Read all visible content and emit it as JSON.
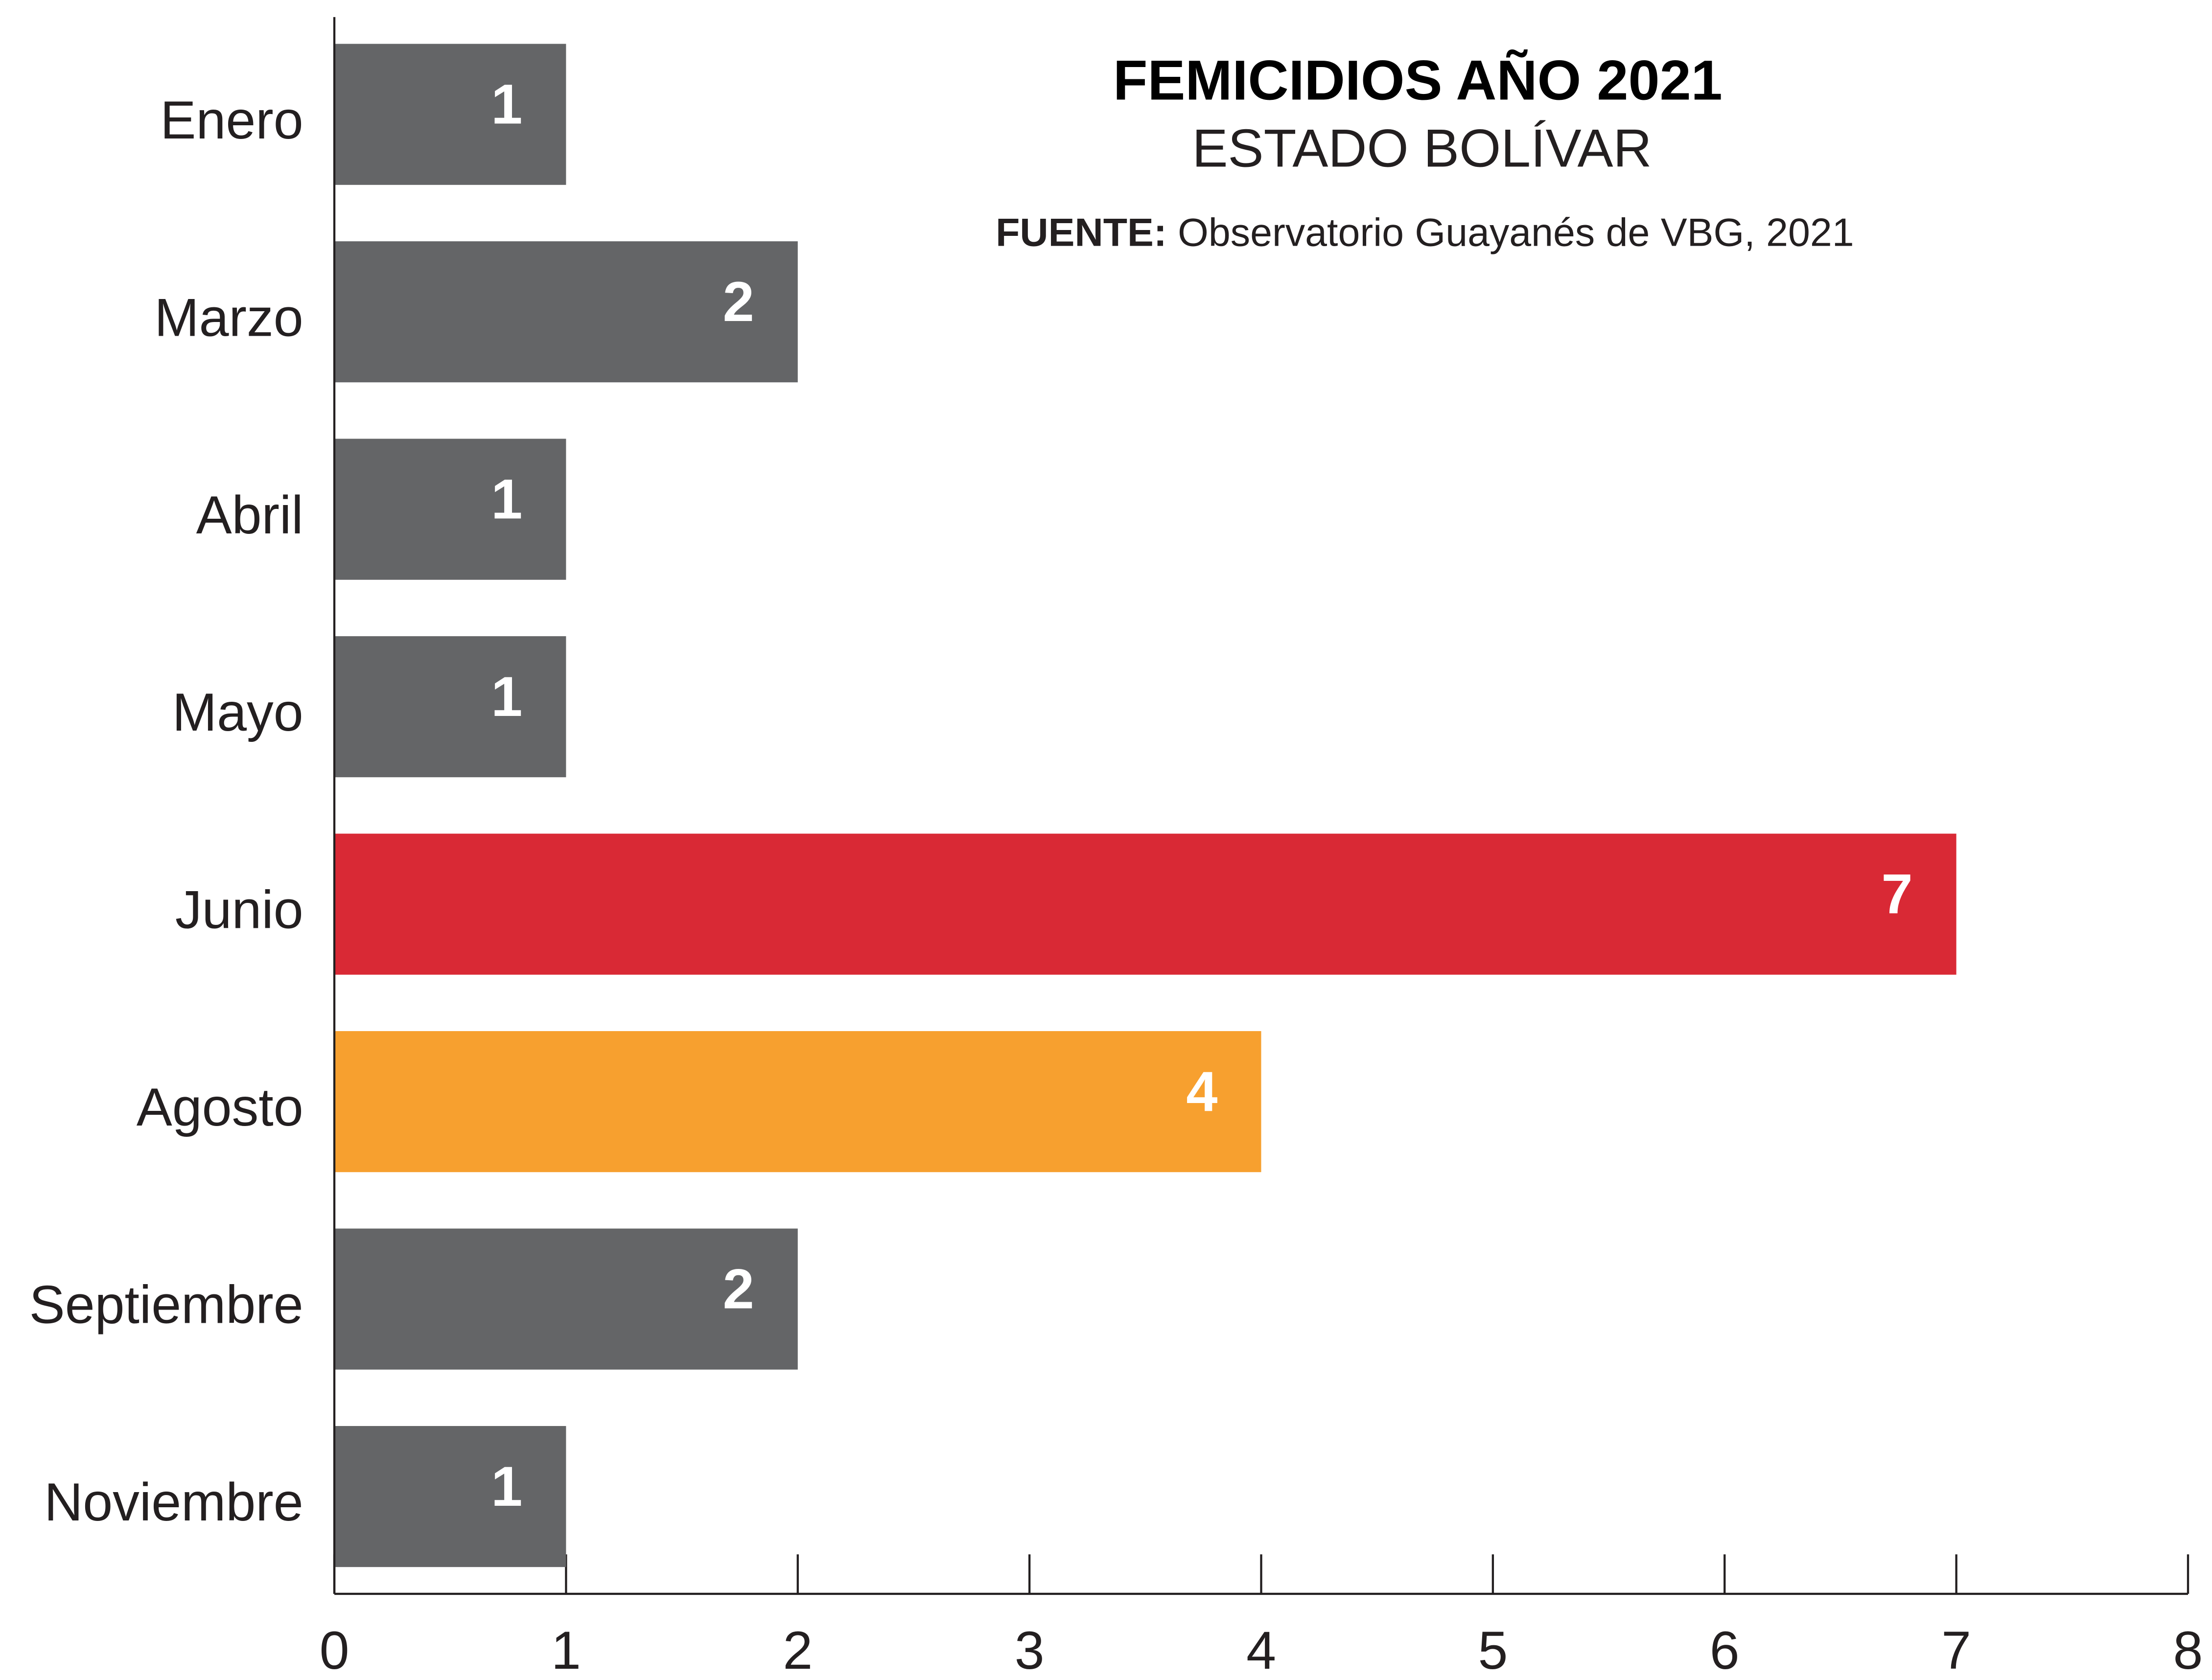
{
  "chart_data": {
    "type": "bar",
    "orientation": "horizontal",
    "title": "FEMICIDIOS  AÑO 2021",
    "subtitle": "ESTADO BOLÍVAR",
    "source_label": "FUENTE:",
    "source_text": "Observatorio Guayanés de VBG, 2021",
    "categories": [
      "Enero",
      "Marzo",
      "Abril",
      "Mayo",
      "Junio",
      "Agosto",
      "Septiembre",
      "Noviembre"
    ],
    "values": [
      1,
      2,
      1,
      1,
      7,
      4,
      2,
      1
    ],
    "colors": [
      "#646567",
      "#646567",
      "#646567",
      "#646567",
      "#d92935",
      "#f7a02f",
      "#646567",
      "#646567"
    ],
    "xlim": [
      0,
      8
    ],
    "xticks": [
      0,
      1,
      2,
      3,
      4,
      5,
      6,
      7,
      8
    ]
  }
}
